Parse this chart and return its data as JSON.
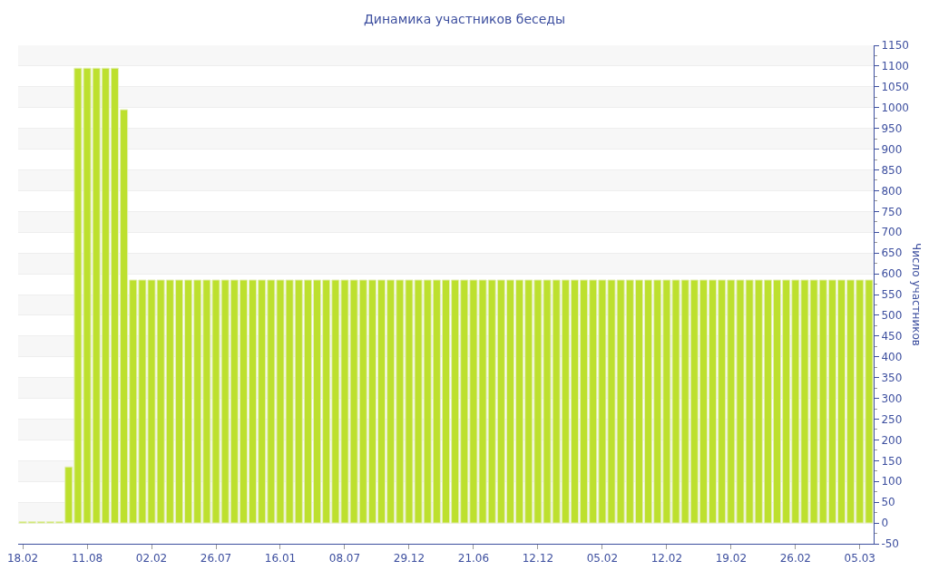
{
  "chart_data": {
    "type": "bar",
    "title": "Динамика участников беседы",
    "ylabel": "Число участников",
    "categories": [
      "18.02",
      null,
      null,
      null,
      null,
      null,
      null,
      "11.08",
      null,
      null,
      null,
      null,
      null,
      null,
      "02.02",
      null,
      null,
      null,
      null,
      null,
      null,
      "26.07",
      null,
      null,
      null,
      null,
      null,
      null,
      "16.01",
      null,
      null,
      null,
      null,
      null,
      null,
      "08.07",
      null,
      null,
      null,
      null,
      null,
      null,
      "29.12",
      null,
      null,
      null,
      null,
      null,
      null,
      "21.06",
      null,
      null,
      null,
      null,
      null,
      null,
      "12.12",
      null,
      null,
      null,
      null,
      null,
      null,
      "05.02",
      null,
      null,
      null,
      null,
      null,
      null,
      "12.02",
      null,
      null,
      null,
      null,
      null,
      null,
      "19.02",
      null,
      null,
      null,
      null,
      null,
      null,
      "26.02",
      null,
      null,
      null,
      null,
      null,
      null,
      "05.03",
      null
    ],
    "values": [
      3,
      3,
      3,
      3,
      3,
      135,
      1095,
      1095,
      1095,
      1095,
      1095,
      995,
      585,
      585,
      585,
      585,
      585,
      585,
      585,
      585,
      585,
      585,
      585,
      585,
      585,
      585,
      585,
      585,
      585,
      585,
      585,
      585,
      585,
      585,
      585,
      585,
      585,
      585,
      585,
      585,
      585,
      585,
      585,
      585,
      585,
      585,
      585,
      585,
      585,
      585,
      585,
      585,
      585,
      585,
      585,
      585,
      585,
      585,
      585,
      585,
      585,
      585,
      585,
      585,
      585,
      585,
      585,
      585,
      585,
      585,
      585,
      585,
      585,
      585,
      585,
      585,
      585,
      585,
      585,
      585,
      585,
      585,
      585,
      585,
      585,
      585,
      585,
      585,
      585,
      585,
      585,
      585,
      585
    ],
    "color": "#bde02e",
    "ylim": [
      -50,
      1150
    ],
    "yticks": [
      -50,
      0,
      50,
      100,
      150,
      200,
      250,
      300,
      350,
      400,
      450,
      500,
      550,
      600,
      650,
      700,
      750,
      800,
      850,
      900,
      950,
      1000,
      1050,
      1100,
      1150
    ],
    "grid": "y"
  }
}
